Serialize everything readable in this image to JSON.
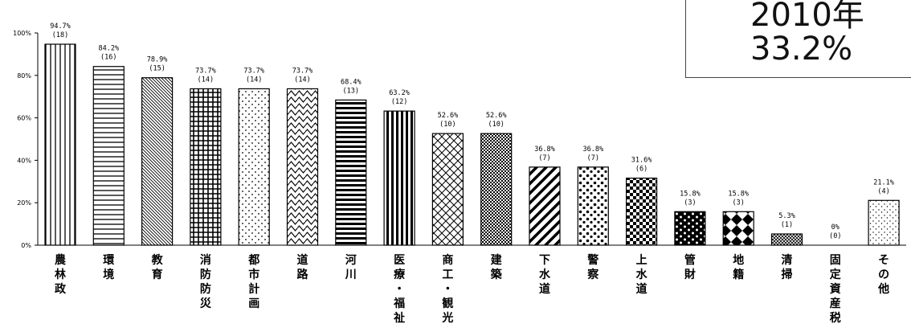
{
  "inset": {
    "line1": "2010年",
    "line2": "33.2%"
  },
  "chart_data": {
    "type": "bar",
    "ylim": [
      0,
      100
    ],
    "ytick_labels": [
      "0%",
      "20%",
      "40%",
      "60%",
      "80%",
      "100%"
    ],
    "yticks": [
      0,
      20,
      40,
      60,
      80,
      100
    ],
    "grid": false,
    "categories": [
      "農林政",
      "環境",
      "教育",
      "消防防災",
      "都市計画",
      "道路",
      "河川",
      "医療・福祉",
      "商工・観光",
      "建築",
      "下水道",
      "警察",
      "上水道",
      "管財",
      "地籍",
      "清掃",
      "固定資産税",
      "その他"
    ],
    "values": [
      94.7,
      84.2,
      78.9,
      73.7,
      73.7,
      73.7,
      68.4,
      63.2,
      52.6,
      52.6,
      36.8,
      36.8,
      31.6,
      15.8,
      15.8,
      5.3,
      0,
      21.1
    ],
    "value_labels": [
      "94.7%",
      "84.2%",
      "78.9%",
      "73.7%",
      "73.7%",
      "73.7%",
      "68.4%",
      "63.2%",
      "52.6%",
      "52.6%",
      "36.8%",
      "36.8%",
      "31.6%",
      "15.8%",
      "15.8%",
      "5.3%",
      "0%",
      "21.1%"
    ],
    "counts": [
      "(18)",
      "(16)",
      "(15)",
      "(14)",
      "(14)",
      "(14)",
      "(13)",
      "(12)",
      "(10)",
      "(10)",
      "(7)",
      "(7)",
      "(6)",
      "(3)",
      "(3)",
      "(1)",
      "(0)",
      "(4)"
    ],
    "patterns": [
      "vlines",
      "hlines",
      "diag-dense",
      "grid",
      "dots",
      "waves",
      "hlines-bold",
      "vlines-bold",
      "crosshatch",
      "checker-fine",
      "diag-wide",
      "blobs",
      "checker",
      "bricks",
      "diamonds",
      "fine-cross",
      "none",
      "sparse-dots"
    ],
    "bar_color": "#000000"
  }
}
